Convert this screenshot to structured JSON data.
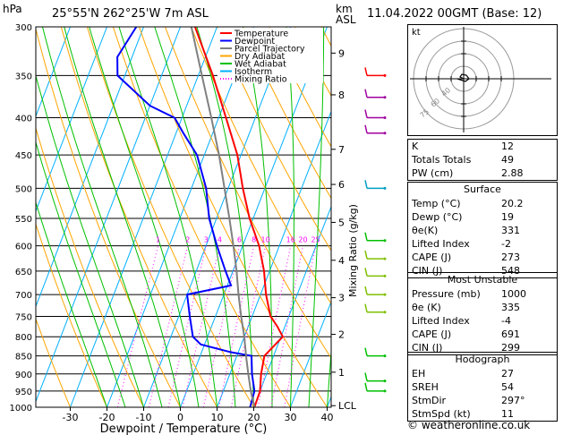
{
  "header": {
    "pressure_unit": "hPa",
    "location": "25°55'N  262°25'W  7m  ASL",
    "height_unit_1": "km",
    "height_unit_2": "ASL",
    "datetime": "11.04.2022  00GMT  (Base: 12)"
  },
  "legend": [
    "Temperature",
    "Dewpoint",
    "Parcel Trajectory",
    "Dry Adiabat",
    "Wet Adiabat",
    "Isotherm",
    "Mixing Ratio"
  ],
  "colors": {
    "temperature": "#ff0000",
    "dewpoint": "#0000ff",
    "parcel": "#808080",
    "dry_adiabat": "#ffa500",
    "wet_adiabat": "#00c000",
    "isotherm": "#00b0ff",
    "mixing_ratio": "#ff00ff"
  },
  "chart_data": {
    "type": "line",
    "xlabel": "Dewpoint / Temperature (°C)",
    "ylabel": "Mixing Ratio (g/kg)",
    "x_ticks": [
      -30,
      -20,
      -10,
      0,
      10,
      20,
      30,
      40
    ],
    "pressure_levels": [
      300,
      350,
      400,
      450,
      500,
      550,
      600,
      650,
      700,
      750,
      800,
      850,
      900,
      950,
      1000
    ],
    "km_labels": [
      {
        "p": 326,
        "label": "9"
      },
      {
        "p": 372,
        "label": "8"
      },
      {
        "p": 442,
        "label": "7"
      },
      {
        "p": 494,
        "label": "6"
      },
      {
        "p": 557,
        "label": "5"
      },
      {
        "p": 628,
        "label": "4"
      },
      {
        "p": 707,
        "label": "3"
      },
      {
        "p": 794,
        "label": "2"
      },
      {
        "p": 895,
        "label": "1"
      },
      {
        "p": 995,
        "label": "LCL"
      }
    ],
    "mixing_ratio_labels": [
      "1",
      "2",
      "3",
      "4",
      "6",
      "8",
      "10",
      "16",
      "20",
      "25"
    ],
    "series": [
      {
        "name": "Temperature",
        "points": [
          [
            1000,
            20.2
          ],
          [
            950,
            20
          ],
          [
            900,
            18.5
          ],
          [
            850,
            17.5
          ],
          [
            800,
            20.5
          ],
          [
            775,
            18
          ],
          [
            750,
            15
          ],
          [
            700,
            11.5
          ],
          [
            650,
            8.5
          ],
          [
            600,
            4.5
          ],
          [
            550,
            -1
          ],
          [
            500,
            -6
          ],
          [
            450,
            -11
          ],
          [
            400,
            -18
          ],
          [
            350,
            -26
          ],
          [
            300,
            -36
          ]
        ]
      },
      {
        "name": "Dewpoint",
        "points": [
          [
            1000,
            19
          ],
          [
            950,
            18.5
          ],
          [
            900,
            16
          ],
          [
            850,
            14
          ],
          [
            840,
            8
          ],
          [
            820,
            -1
          ],
          [
            800,
            -4
          ],
          [
            750,
            -7
          ],
          [
            700,
            -10
          ],
          [
            680,
            1
          ],
          [
            650,
            -2
          ],
          [
            600,
            -7
          ],
          [
            550,
            -12
          ],
          [
            500,
            -16
          ],
          [
            450,
            -22
          ],
          [
            420,
            -28
          ],
          [
            400,
            -32
          ],
          [
            385,
            -40
          ],
          [
            350,
            -52
          ],
          [
            330,
            -54
          ],
          [
            300,
            -52
          ]
        ]
      },
      {
        "name": "Parcel Trajectory",
        "points": [
          [
            1000,
            20.2
          ],
          [
            950,
            17.5
          ],
          [
            900,
            15
          ],
          [
            850,
            12.5
          ],
          [
            800,
            10
          ],
          [
            750,
            7
          ],
          [
            700,
            4
          ],
          [
            650,
            1
          ],
          [
            600,
            -2.5
          ],
          [
            550,
            -6.5
          ],
          [
            500,
            -11
          ],
          [
            450,
            -16
          ],
          [
            400,
            -22
          ],
          [
            350,
            -29
          ],
          [
            300,
            -37
          ]
        ]
      }
    ]
  },
  "indices": [
    {
      "label": "K",
      "value": "12"
    },
    {
      "label": "Totals Totals",
      "value": "49"
    },
    {
      "label": "PW (cm)",
      "value": "2.88"
    }
  ],
  "surface": {
    "title": "Surface",
    "rows": [
      {
        "label": "Temp (°C)",
        "value": "20.2"
      },
      {
        "label": "Dewp (°C)",
        "value": "19"
      },
      {
        "label": "θe(K)",
        "value": "331"
      },
      {
        "label": "Lifted Index",
        "value": "-2"
      },
      {
        "label": "CAPE (J)",
        "value": "273"
      },
      {
        "label": "CIN (J)",
        "value": "548"
      }
    ]
  },
  "most_unstable": {
    "title": "Most Unstable",
    "rows": [
      {
        "label": "Pressure (mb)",
        "value": "1000"
      },
      {
        "label": "θe (K)",
        "value": "335"
      },
      {
        "label": "Lifted Index",
        "value": "-4"
      },
      {
        "label": "CAPE (J)",
        "value": "691"
      },
      {
        "label": "CIN (J)",
        "value": "299"
      }
    ]
  },
  "hodograph": {
    "title": "Hodograph",
    "label": "kt",
    "rows": [
      {
        "label": "EH",
        "value": "27"
      },
      {
        "label": "SREH",
        "value": "54"
      },
      {
        "label": "StmDir",
        "value": "297°"
      },
      {
        "label": "StmSpd (kt)",
        "value": "11"
      }
    ]
  },
  "footer": "© weatheronline.co.uk"
}
